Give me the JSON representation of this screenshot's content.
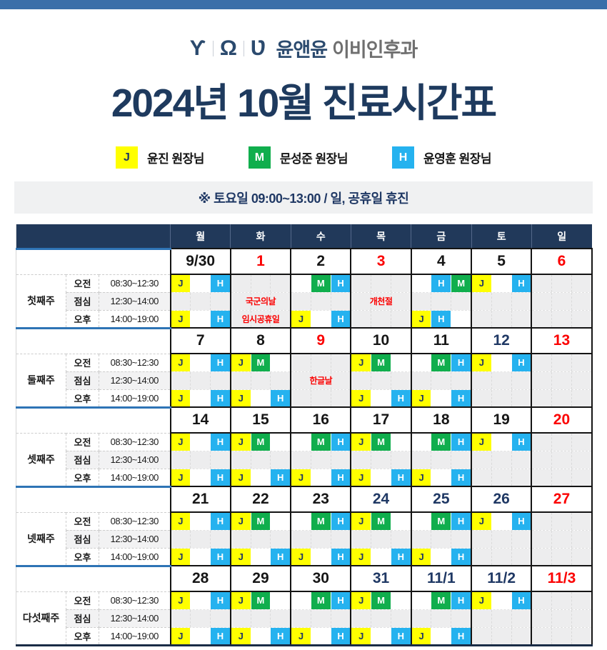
{
  "colors": {
    "topbar": "#3b6fa9",
    "header_navy": "#21395a",
    "week_separator_blue": "#2e74b5",
    "holiday_red": "#fb0000",
    "date_colors": {
      "black": "#161616",
      "red": "#fb0000",
      "navy": "#1f3864"
    }
  },
  "logo": {
    "glyphs": [
      "Ƴ",
      "Ω",
      "Ʋ"
    ],
    "name_bold": "윤앤윤",
    "name_rest": "이비인후과"
  },
  "title": "2024년 10월 진료시간표",
  "legend": [
    {
      "code": "J",
      "label": "윤진 원장님",
      "bg": "#ffff00",
      "fg": "#1f3864"
    },
    {
      "code": "M",
      "label": "문성준 원장님",
      "bg": "#10ae4d",
      "fg": "#ffffff"
    },
    {
      "code": "H",
      "label": "윤영훈 원장님",
      "bg": "#25b2ef",
      "fg": "#ffffff"
    }
  ],
  "notice": "※ 토요일  09:00~13:00 / 일, 공휴일 휴진",
  "table": {
    "day_headers": [
      "월",
      "화",
      "수",
      "목",
      "금",
      "토",
      "일"
    ],
    "periods": [
      {
        "label": "오전",
        "time": "08:30~12:30"
      },
      {
        "label": "점심",
        "time": "12:30~14:00"
      },
      {
        "label": "오후",
        "time": "14:00~19:00"
      }
    ],
    "badge_colors": {
      "J": {
        "bg": "#ffff00",
        "fg": "#1f3864"
      },
      "M": {
        "bg": "#10ae4d",
        "fg": "#ffffff"
      },
      "H": {
        "bg": "#25b2ef",
        "fg": "#ffffff"
      }
    },
    "weeks": [
      {
        "label": "첫째주",
        "days": [
          {
            "date": "9/30",
            "date_color": "black",
            "am": {
              "slots": [
                "J",
                "",
                "H"
              ]
            },
            "lunch": {
              "closed": true
            },
            "pm": {
              "slots": [
                "J",
                "",
                "H"
              ]
            }
          },
          {
            "date": "1",
            "date_color": "red",
            "am": {
              "closed": true
            },
            "lunch": {
              "closed": true,
              "text": "국군의날"
            },
            "pm": {
              "closed": true,
              "text": "임시공휴일"
            }
          },
          {
            "date": "2",
            "date_color": "black",
            "am": {
              "slots": [
                "",
                "M",
                "H"
              ]
            },
            "lunch": {
              "closed": true
            },
            "pm": {
              "slots": [
                "J",
                "",
                "H"
              ]
            }
          },
          {
            "date": "3",
            "date_color": "red",
            "am": {
              "closed": true
            },
            "lunch": {
              "closed": true,
              "text": "개천절"
            },
            "pm": {
              "closed": true
            }
          },
          {
            "date": "4",
            "date_color": "black",
            "am": {
              "slots": [
                "",
                "H",
                "M"
              ]
            },
            "lunch": {
              "closed": true
            },
            "pm": {
              "slots": [
                "J",
                "H",
                ""
              ]
            }
          },
          {
            "date": "5",
            "date_color": "black",
            "am": {
              "slots": [
                "J",
                "",
                "H"
              ]
            },
            "lunch": {
              "closed": true
            },
            "pm": {
              "closed": true
            }
          },
          {
            "date": "6",
            "date_color": "red",
            "am": {
              "closed": true
            },
            "lunch": {
              "closed": true
            },
            "pm": {
              "closed": true
            }
          }
        ]
      },
      {
        "label": "둘째주",
        "days": [
          {
            "date": "7",
            "date_color": "black",
            "am": {
              "slots": [
                "J",
                "",
                "H"
              ]
            },
            "lunch": {
              "closed": true
            },
            "pm": {
              "slots": [
                "J",
                "",
                "H"
              ]
            }
          },
          {
            "date": "8",
            "date_color": "black",
            "am": {
              "slots": [
                "J",
                "M",
                ""
              ]
            },
            "lunch": {
              "closed": true
            },
            "pm": {
              "slots": [
                "J",
                "",
                "H"
              ]
            }
          },
          {
            "date": "9",
            "date_color": "red",
            "am": {
              "closed": true
            },
            "lunch": {
              "closed": true,
              "text": "한글날"
            },
            "pm": {
              "closed": true
            }
          },
          {
            "date": "10",
            "date_color": "black",
            "am": {
              "slots": [
                "J",
                "M",
                ""
              ]
            },
            "lunch": {
              "closed": true
            },
            "pm": {
              "slots": [
                "J",
                "",
                "H"
              ]
            }
          },
          {
            "date": "11",
            "date_color": "black",
            "am": {
              "slots": [
                "",
                "M",
                "H"
              ]
            },
            "lunch": {
              "closed": true
            },
            "pm": {
              "slots": [
                "J",
                "",
                "H"
              ]
            }
          },
          {
            "date": "12",
            "date_color": "navy",
            "am": {
              "slots": [
                "J",
                "",
                "H"
              ]
            },
            "lunch": {
              "closed": true
            },
            "pm": {
              "closed": true
            }
          },
          {
            "date": "13",
            "date_color": "red",
            "am": {
              "closed": true
            },
            "lunch": {
              "closed": true
            },
            "pm": {
              "closed": true
            }
          }
        ]
      },
      {
        "label": "셋째주",
        "days": [
          {
            "date": "14",
            "date_color": "black",
            "am": {
              "slots": [
                "J",
                "",
                "H"
              ]
            },
            "lunch": {
              "closed": true
            },
            "pm": {
              "slots": [
                "J",
                "",
                "H"
              ]
            }
          },
          {
            "date": "15",
            "date_color": "black",
            "am": {
              "slots": [
                "J",
                "M",
                ""
              ]
            },
            "lunch": {
              "closed": true
            },
            "pm": {
              "slots": [
                "J",
                "",
                "H"
              ]
            }
          },
          {
            "date": "16",
            "date_color": "black",
            "am": {
              "slots": [
                "",
                "M",
                "H"
              ]
            },
            "lunch": {
              "closed": true
            },
            "pm": {
              "slots": [
                "J",
                "",
                "H"
              ]
            }
          },
          {
            "date": "17",
            "date_color": "black",
            "am": {
              "slots": [
                "J",
                "M",
                ""
              ]
            },
            "lunch": {
              "closed": true
            },
            "pm": {
              "slots": [
                "J",
                "",
                "H"
              ]
            }
          },
          {
            "date": "18",
            "date_color": "black",
            "am": {
              "slots": [
                "",
                "M",
                "H"
              ]
            },
            "lunch": {
              "closed": true
            },
            "pm": {
              "slots": [
                "J",
                "",
                "H"
              ]
            }
          },
          {
            "date": "19",
            "date_color": "black",
            "am": {
              "slots": [
                "J",
                "",
                "H"
              ]
            },
            "lunch": {
              "closed": true
            },
            "pm": {
              "closed": true
            }
          },
          {
            "date": "20",
            "date_color": "red",
            "am": {
              "closed": true
            },
            "lunch": {
              "closed": true
            },
            "pm": {
              "closed": true
            }
          }
        ]
      },
      {
        "label": "넷째주",
        "days": [
          {
            "date": "21",
            "date_color": "black",
            "am": {
              "slots": [
                "J",
                "",
                "H"
              ]
            },
            "lunch": {
              "closed": true
            },
            "pm": {
              "slots": [
                "J",
                "",
                "H"
              ]
            }
          },
          {
            "date": "22",
            "date_color": "black",
            "am": {
              "slots": [
                "J",
                "M",
                ""
              ]
            },
            "lunch": {
              "closed": true
            },
            "pm": {
              "slots": [
                "J",
                "",
                "H"
              ]
            }
          },
          {
            "date": "23",
            "date_color": "black",
            "am": {
              "slots": [
                "",
                "M",
                "H"
              ]
            },
            "lunch": {
              "closed": true
            },
            "pm": {
              "slots": [
                "J",
                "",
                "H"
              ]
            }
          },
          {
            "date": "24",
            "date_color": "navy",
            "am": {
              "slots": [
                "J",
                "M",
                ""
              ]
            },
            "lunch": {
              "closed": true
            },
            "pm": {
              "slots": [
                "J",
                "",
                "H"
              ]
            }
          },
          {
            "date": "25",
            "date_color": "navy",
            "am": {
              "slots": [
                "",
                "M",
                "H"
              ]
            },
            "lunch": {
              "closed": true
            },
            "pm": {
              "slots": [
                "J",
                "",
                "H"
              ]
            }
          },
          {
            "date": "26",
            "date_color": "navy",
            "am": {
              "slots": [
                "J",
                "",
                "H"
              ]
            },
            "lunch": {
              "closed": true
            },
            "pm": {
              "closed": true
            }
          },
          {
            "date": "27",
            "date_color": "red",
            "am": {
              "closed": true
            },
            "lunch": {
              "closed": true
            },
            "pm": {
              "closed": true
            }
          }
        ]
      },
      {
        "label": "다섯째주",
        "days": [
          {
            "date": "28",
            "date_color": "black",
            "am": {
              "slots": [
                "J",
                "",
                "H"
              ]
            },
            "lunch": {
              "closed": true
            },
            "pm": {
              "slots": [
                "J",
                "",
                "H"
              ]
            }
          },
          {
            "date": "29",
            "date_color": "black",
            "am": {
              "slots": [
                "J",
                "M",
                ""
              ]
            },
            "lunch": {
              "closed": true
            },
            "pm": {
              "slots": [
                "J",
                "",
                "H"
              ]
            }
          },
          {
            "date": "30",
            "date_color": "black",
            "am": {
              "slots": [
                "",
                "M",
                "H"
              ]
            },
            "lunch": {
              "closed": true
            },
            "pm": {
              "slots": [
                "J",
                "",
                "H"
              ]
            }
          },
          {
            "date": "31",
            "date_color": "navy",
            "am": {
              "slots": [
                "J",
                "M",
                ""
              ]
            },
            "lunch": {
              "closed": true
            },
            "pm": {
              "slots": [
                "J",
                "",
                "H"
              ]
            }
          },
          {
            "date": "11/1",
            "date_color": "navy",
            "am": {
              "slots": [
                "",
                "M",
                "H"
              ]
            },
            "lunch": {
              "closed": true
            },
            "pm": {
              "slots": [
                "J",
                "",
                "H"
              ]
            }
          },
          {
            "date": "11/2",
            "date_color": "navy",
            "am": {
              "slots": [
                "J",
                "",
                "H"
              ]
            },
            "lunch": {
              "closed": true
            },
            "pm": {
              "closed": true
            }
          },
          {
            "date": "11/3",
            "date_color": "red",
            "am": {
              "closed": true
            },
            "lunch": {
              "closed": true
            },
            "pm": {
              "closed": true
            }
          }
        ]
      }
    ]
  }
}
